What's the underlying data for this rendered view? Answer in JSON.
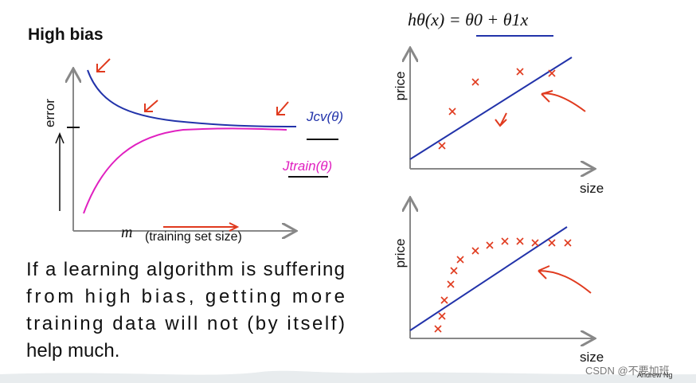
{
  "title": "High bias",
  "formula": "hθ(x) = θ0 + θ1x",
  "left_plot": {
    "y_label": "error",
    "x_symbol": "m",
    "x_label": "(training set size)",
    "cv_label": "Jcv(θ)",
    "train_label": "Jtrain(θ)"
  },
  "right_plots": [
    {
      "y_label": "price",
      "x_label": "size"
    },
    {
      "y_label": "price",
      "x_label": "size"
    }
  ],
  "paragraph": [
    "If a learning algorithm is suffering",
    "from high bias, getting more",
    "training data will not (by itself)",
    "help much."
  ],
  "credit": "Andrew Ng",
  "watermark": "CSDN @不要加班"
}
